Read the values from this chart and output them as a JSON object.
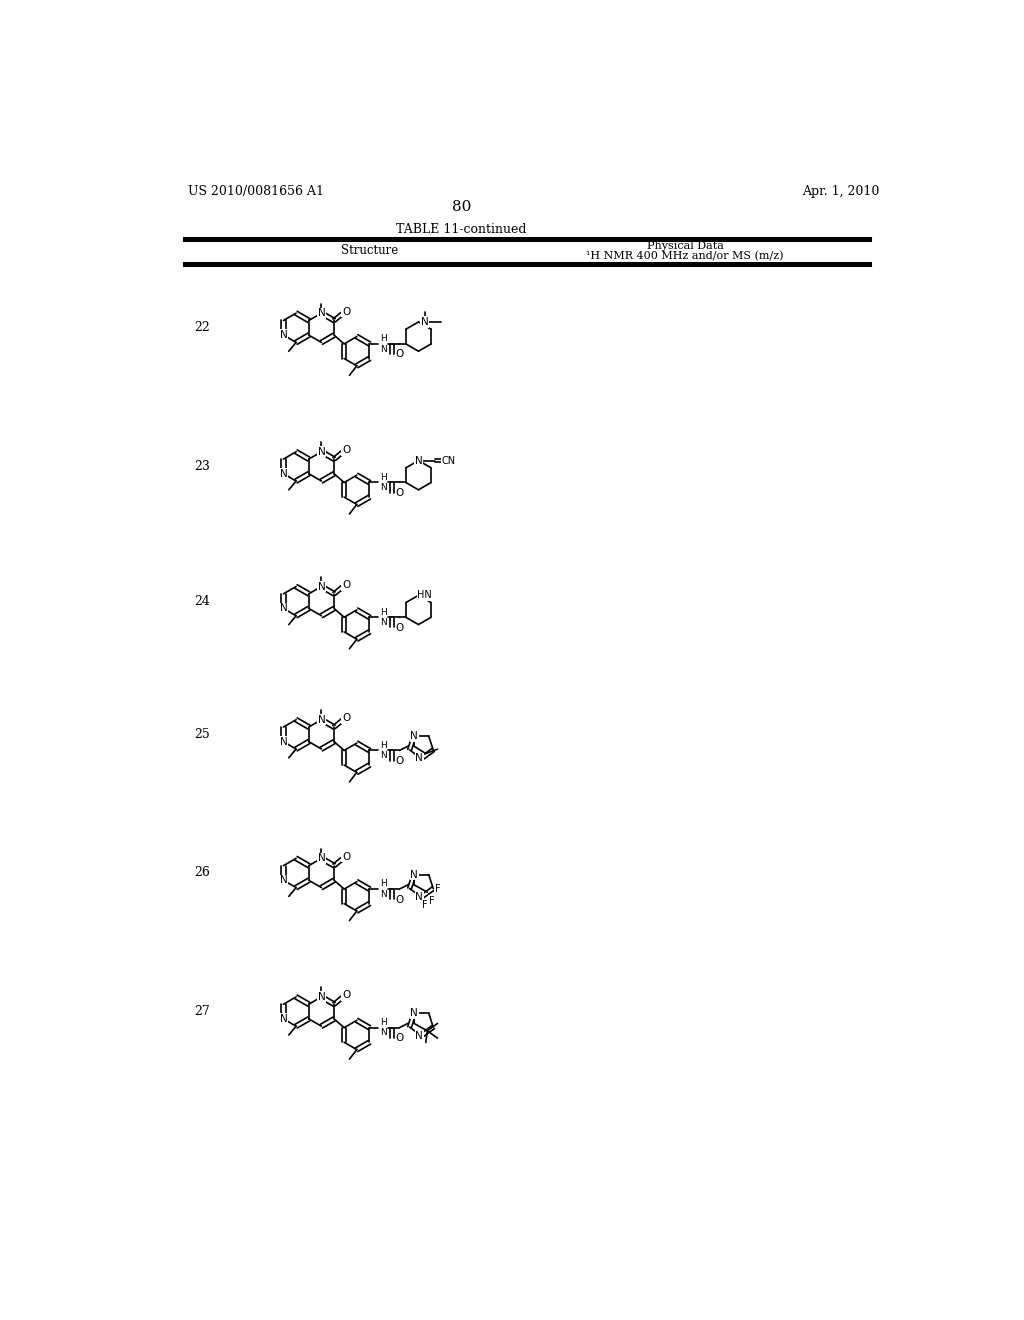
{
  "patent_number": "US 2010/0081656 A1",
  "patent_date": "Apr. 1, 2010",
  "page_number": "80",
  "table_title": "TABLE 11-continued",
  "col1_header": "Structure",
  "col2_header_line1": "Physical Data",
  "col2_header_line2": "¹H NMR 400 MHz and/or MS (m/z)",
  "row_numbers": [
    "22",
    "23",
    "24",
    "25",
    "26",
    "27"
  ],
  "row_y_centers": [
    220,
    400,
    575,
    748,
    928,
    1108
  ],
  "background": "#ffffff",
  "line_color": "#000000",
  "text_color": "#000000"
}
